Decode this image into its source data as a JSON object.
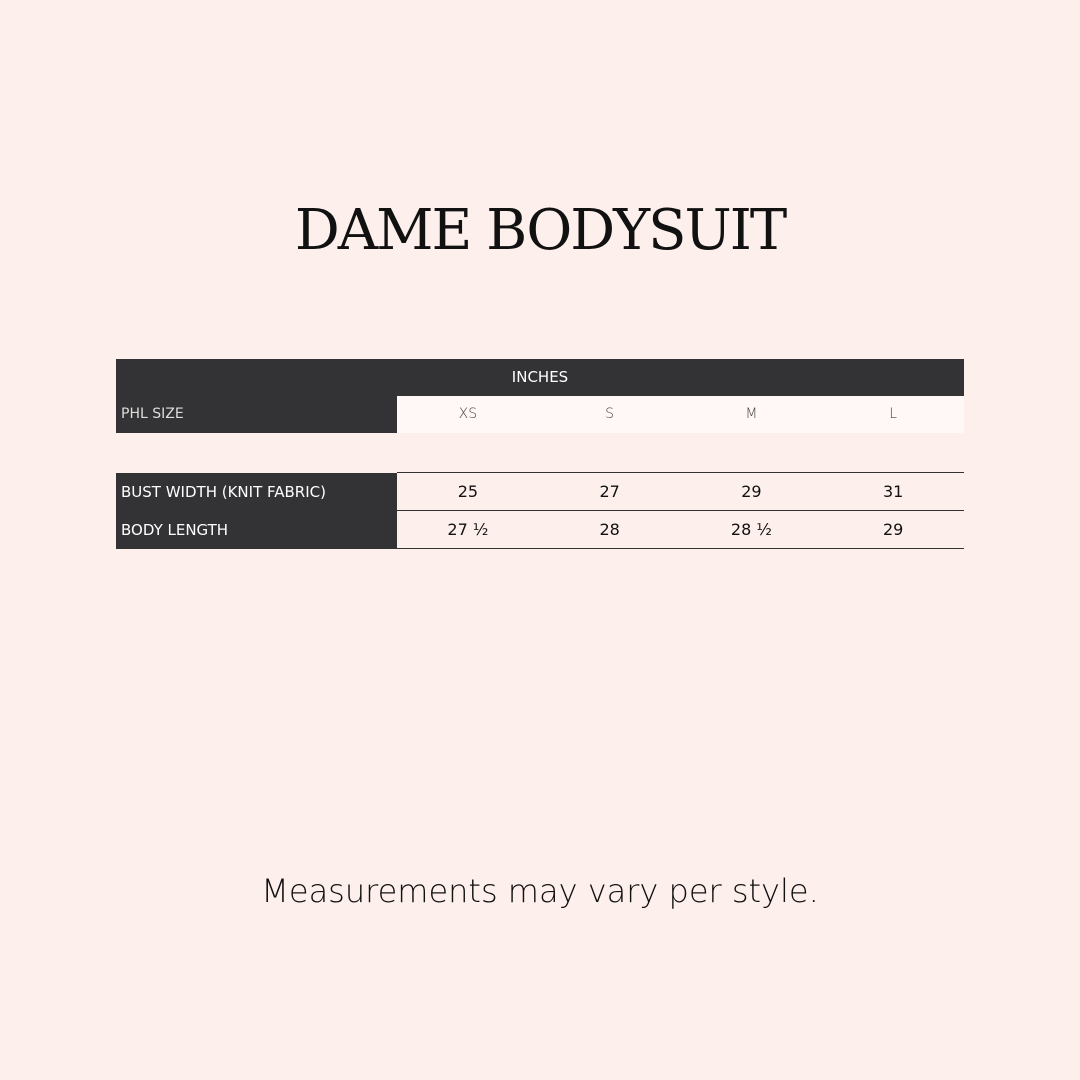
{
  "title": "DAME BODYSUIT",
  "table": {
    "unit_header": "INCHES",
    "size_label": "PHL SIZE",
    "sizes": [
      "XS",
      "S",
      "M",
      "L"
    ],
    "rows": [
      {
        "label": "BUST WIDTH (KNIT FABRIC)",
        "values": [
          "25",
          "27",
          "29",
          "31"
        ]
      },
      {
        "label": "BODY LENGTH",
        "values": [
          "27 ½",
          "28",
          "28 ½",
          "29"
        ]
      }
    ]
  },
  "footer": "Measurements may vary per style.",
  "colors": {
    "background": "#fdefeb",
    "header": "#333335"
  }
}
